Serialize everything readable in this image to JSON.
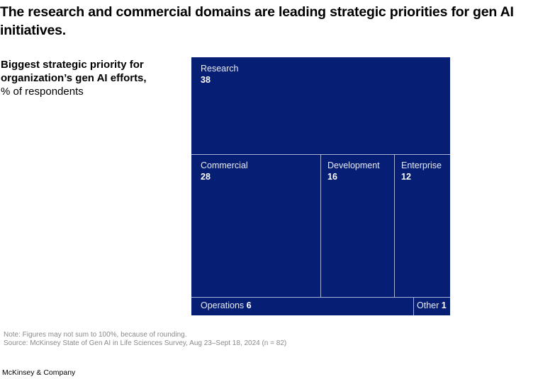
{
  "chart_data": {
    "type": "treemap",
    "title": "The research and commercial domains are leading strategic priorities for gen AI initiatives.",
    "subtitle_bold": "Biggest strategic priority for organization’s gen AI efforts,",
    "subtitle_unit": "% of respondents",
    "categories": [
      "Research",
      "Commercial",
      "Development",
      "Enterprise",
      "Operations",
      "Other"
    ],
    "values": [
      38,
      28,
      16,
      12,
      6,
      1
    ],
    "unit": "% of respondents",
    "colors": {
      "fill": "#061f74",
      "divider": "#a9b3d6",
      "label": "#ffffff"
    }
  },
  "footer": {
    "note": "Note: Figures may not sum to 100%, because of rounding.",
    "source": "Source: McKinsey State of Gen AI in Life Sciences Survey, Aug 23–Sept 18, 2024 (n = 82)",
    "brand": "McKinsey & Company"
  }
}
